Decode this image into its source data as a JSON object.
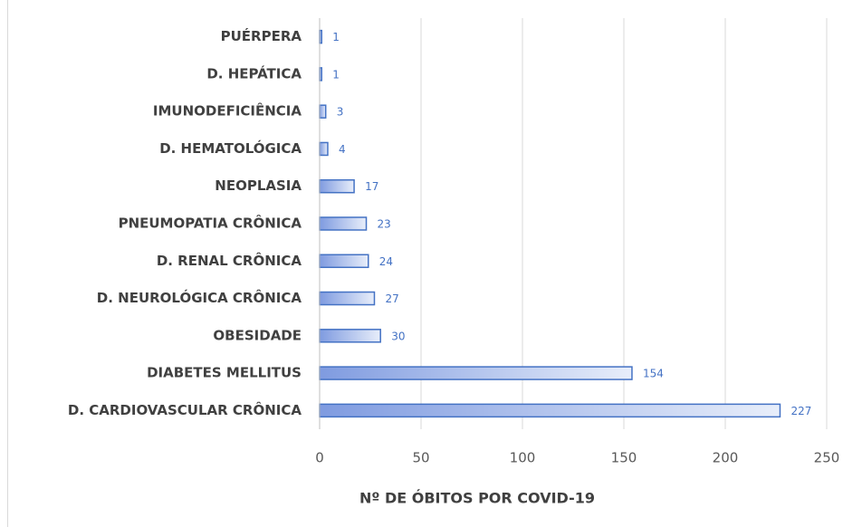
{
  "chart_data": {
    "type": "bar",
    "orientation": "horizontal",
    "x_label": "Nº DE ÓBITOS POR COVID-19",
    "categories": [
      "PUÉRPERA",
      "D. HEPÁTICA",
      "IMUNODEFICIÊNCIA",
      "D. HEMATOLÓGICA",
      "NEOPLASIA",
      "PNEUMOPATIA CRÔNICA",
      "D. RENAL CRÔNICA",
      "D. NEUROLÓGICA CRÔNICA",
      "OBESIDADE",
      "DIABETES MELLITUS",
      "D. CARDIOVASCULAR CRÔNICA"
    ],
    "values": [
      1,
      1,
      3,
      4,
      17,
      23,
      24,
      27,
      30,
      154,
      227
    ],
    "color": "#4472c4",
    "xlim": [
      0,
      250
    ],
    "xticks": [
      0,
      50,
      100,
      150,
      200,
      250
    ],
    "grid": true
  }
}
